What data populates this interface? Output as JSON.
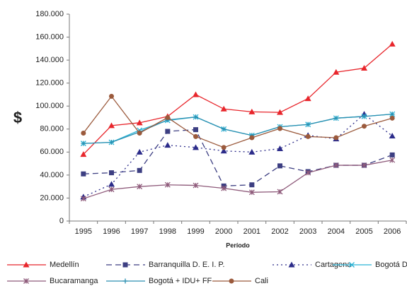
{
  "chart_data": {
    "type": "line",
    "x_label": "Período",
    "y_label": "$",
    "categories": [
      "1995",
      "1996",
      "1997",
      "1998",
      "1999",
      "2000",
      "2001",
      "2002",
      "2003",
      "2004",
      "2005",
      "2006"
    ],
    "ylim": [
      0,
      180000
    ],
    "yticks": [
      0,
      {
        "value": 20000,
        "label": "20.000"
      },
      {
        "value": 40000,
        "label": "40.000"
      },
      {
        "value": 60000,
        "label": "60.000"
      },
      {
        "value": 80000,
        "label": "80.000"
      },
      {
        "value": 100000,
        "label": "100.000"
      },
      {
        "value": 120000,
        "label": "120.000"
      },
      {
        "value": 140000,
        "label": "140.000"
      },
      {
        "value": 160000,
        "label": "160.000"
      },
      {
        "value": 180000,
        "label": "180.000"
      }
    ],
    "grid": false,
    "series": [
      {
        "name": "Medellín",
        "color": "#e8262c",
        "dash": "solid",
        "marker": "triangle",
        "values": [
          58000,
          83000,
          85500,
          91000,
          110000,
          97500,
          95000,
          94500,
          106500,
          129500,
          133000,
          154000
        ]
      },
      {
        "name": "Barranquilla D. E. I. P.",
        "color": "#3d3f82",
        "dash": "dashed",
        "marker": "square",
        "values": [
          41000,
          42000,
          44000,
          78000,
          79500,
          30500,
          31500,
          48000,
          43000,
          48500,
          48500,
          57500
        ]
      },
      {
        "name": "Cartagena",
        "color": "#2c2c8a",
        "dash": "dotted",
        "marker": "triangle",
        "values": [
          21000,
          32000,
          60000,
          66000,
          64000,
          61000,
          60000,
          63000,
          74500,
          71500,
          93000,
          74000
        ]
      },
      {
        "name": "Bogotá D. C.",
        "color": "#2ab3d6",
        "dash": "solid",
        "marker": "x",
        "values": [
          67500,
          68500,
          79000,
          87500,
          90500,
          80000,
          74500,
          82000,
          84000,
          89500,
          91000,
          93000
        ]
      },
      {
        "name": "Bucaramanga",
        "color": "#8e5a7a",
        "dash": "solid",
        "marker": "star",
        "values": [
          19500,
          27500,
          30000,
          31500,
          31000,
          28500,
          25000,
          25500,
          42000,
          48500,
          48500,
          53000
        ]
      },
      {
        "name": "Bogotá + IDU+ FF",
        "color": "#2a8fb0",
        "dash": "solid",
        "marker": "plus",
        "values": [
          67500,
          68500,
          77500,
          88000,
          90500,
          80000,
          74500,
          82000,
          84000,
          89500,
          91000,
          93000
        ]
      },
      {
        "name": "Cali",
        "color": "#9b5a3c",
        "dash": "solid",
        "marker": "circle",
        "values": [
          76500,
          108500,
          76500,
          90000,
          73500,
          64000,
          72500,
          80500,
          73500,
          72500,
          82500,
          89500
        ]
      }
    ]
  }
}
